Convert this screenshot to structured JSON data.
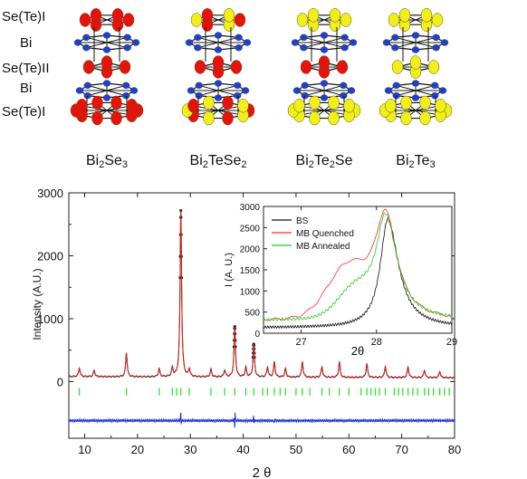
{
  "structure_panel": {
    "layer_labels": [
      "Se(Te)I",
      "Bi",
      "Se(Te)II",
      "Bi",
      "Se(Te)I"
    ],
    "compounds": [
      {
        "base": "Bi",
        "sub1": "2",
        "mid": "Se",
        "sub2": "3",
        "top": "red",
        "middle": "red",
        "bottom": "red"
      },
      {
        "base": "Bi",
        "sub1": "2",
        "mid": "TeSe",
        "sub2": "2",
        "top": "mixed",
        "middle": "red",
        "bottom": "mixed"
      },
      {
        "base": "Bi",
        "sub1": "2",
        "mid": "Te",
        "sub2": "2",
        "suffix": "Se",
        "top": "yellow",
        "middle": "red",
        "bottom": "yellow"
      },
      {
        "base": "Bi",
        "sub1": "2",
        "mid": "Te",
        "sub2": "3",
        "top": "yellow",
        "middle": "yellow",
        "bottom": "yellow"
      }
    ],
    "atom_colors": {
      "se": "#e8120c",
      "te": "#f2ee1a",
      "bi": "#1d3fd6"
    }
  },
  "chart_data": [
    {
      "type": "line",
      "title": "",
      "xlabel": "2 θ",
      "ylabel": "Intensity (A.U.)",
      "xlim": [
        7,
        80
      ],
      "ylim": [
        -900,
        3000
      ],
      "xticks": [
        10,
        20,
        30,
        40,
        50,
        60,
        70,
        80
      ],
      "yticks": [
        0,
        1000,
        2000,
        3000
      ],
      "background_level": 80,
      "peaks": [
        {
          "x": 9.0,
          "y": 220
        },
        {
          "x": 11.8,
          "y": 180
        },
        {
          "x": 17.9,
          "y": 460
        },
        {
          "x": 24.1,
          "y": 210
        },
        {
          "x": 26.6,
          "y": 220
        },
        {
          "x": 28.2,
          "y": 2720
        },
        {
          "x": 29.8,
          "y": 200
        },
        {
          "x": 33.9,
          "y": 200
        },
        {
          "x": 36.5,
          "y": 190
        },
        {
          "x": 38.4,
          "y": 880
        },
        {
          "x": 40.5,
          "y": 230
        },
        {
          "x": 42.0,
          "y": 600
        },
        {
          "x": 44.6,
          "y": 240
        },
        {
          "x": 45.9,
          "y": 320
        },
        {
          "x": 48.0,
          "y": 210
        },
        {
          "x": 51.2,
          "y": 330
        },
        {
          "x": 54.9,
          "y": 250
        },
        {
          "x": 58.2,
          "y": 330
        },
        {
          "x": 63.4,
          "y": 300
        },
        {
          "x": 66.9,
          "y": 260
        },
        {
          "x": 71.2,
          "y": 250
        },
        {
          "x": 74.3,
          "y": 200
        },
        {
          "x": 77.2,
          "y": 180
        }
      ],
      "bragg_positions": [
        9.0,
        17.9,
        24.1,
        26.6,
        27.4,
        28.2,
        29.8,
        33.9,
        36.5,
        38.4,
        40.5,
        42.0,
        43.7,
        44.6,
        45.9,
        47.0,
        48.0,
        50.0,
        51.2,
        52.6,
        54.9,
        56.3,
        58.2,
        60.0,
        62.3,
        63.4,
        64.2,
        65.0,
        65.8,
        66.9,
        68.6,
        69.4,
        70.2,
        71.2,
        72.1,
        73.0,
        74.3,
        75.1,
        76.0,
        77.2,
        78.1,
        79.0
      ],
      "difference_level": -620,
      "difference_spikes": [
        {
          "x": 28.2,
          "y": 110
        },
        {
          "x": 38.4,
          "y": 160
        },
        {
          "x": 42.0,
          "y": 60
        },
        {
          "x": 45.9,
          "y": 40
        }
      ],
      "series": [
        {
          "name": "observed",
          "color": "#222222"
        },
        {
          "name": "calculated",
          "color": "#e0231b"
        },
        {
          "name": "bragg",
          "color": "#33dd33"
        },
        {
          "name": "difference",
          "color": "#2233dd"
        }
      ],
      "grid": false
    },
    {
      "type": "line",
      "title": "",
      "xlabel": "2θ",
      "ylabel": "I (A. U.)",
      "xlim": [
        26.5,
        29
      ],
      "ylim": [
        0,
        3000
      ],
      "xticks": [
        27,
        28,
        29
      ],
      "yticks": [
        0,
        500,
        1000,
        1500,
        2000,
        2500,
        3000
      ],
      "legend_position": "top-left",
      "series": [
        {
          "name": "BS",
          "color": "#111111",
          "base": 130,
          "center": 28.15,
          "peak": 2700,
          "width_left": 0.12,
          "width_right": 0.17,
          "shoulder": 0,
          "shoulder_center": 27.7,
          "shoulder_width": 0.3
        },
        {
          "name": "MB Quenched",
          "color": "#ff2a2a",
          "base": 300,
          "center": 28.12,
          "peak": 2720,
          "width_left": 0.17,
          "width_right": 0.19,
          "shoulder": 1150,
          "shoulder_center": 27.62,
          "shoulder_width": 0.38
        },
        {
          "name": "MB Annealed",
          "color": "#22cc22",
          "base": 300,
          "center": 28.12,
          "peak": 2700,
          "width_left": 0.15,
          "width_right": 0.19,
          "shoulder": 650,
          "shoulder_center": 27.72,
          "shoulder_width": 0.32
        }
      ],
      "grid": false
    }
  ]
}
